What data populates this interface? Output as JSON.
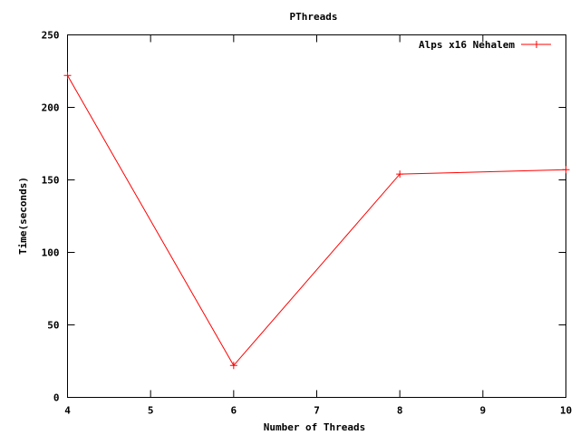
{
  "chart_data": {
    "type": "line",
    "title": "PThreads",
    "xlabel": "Number of Threads",
    "ylabel": "Time(seconds)",
    "xlim": [
      4,
      10
    ],
    "ylim": [
      0,
      250
    ],
    "x_ticks": [
      "4",
      "5",
      "6",
      "7",
      "8",
      "9",
      "10"
    ],
    "y_ticks": [
      "0",
      "50",
      "100",
      "150",
      "200",
      "250"
    ],
    "grid": false,
    "legend_position": "top-right",
    "series": [
      {
        "name": "Alps x16 Nehalem",
        "color": "#ff0000",
        "marker": "plus",
        "points": [
          {
            "x": 4,
            "y": 222
          },
          {
            "x": 6,
            "y": 22
          },
          {
            "x": 8,
            "y": 154
          },
          {
            "x": 10,
            "y": 157
          }
        ]
      }
    ]
  }
}
